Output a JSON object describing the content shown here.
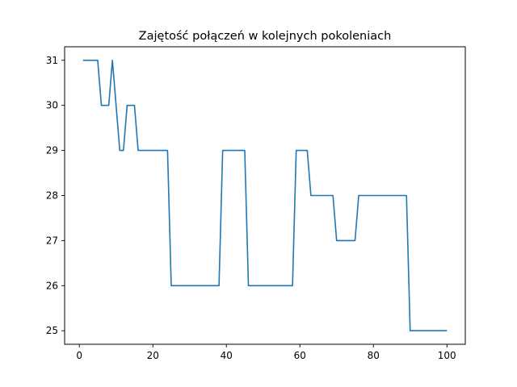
{
  "chart_data": {
    "type": "line",
    "title": "Zajętość połączeń w kolejnych pokoleniach",
    "xlabel": "",
    "ylabel": "",
    "xlim": [
      -4,
      105
    ],
    "ylim": [
      24.7,
      31.3
    ],
    "xticks": [
      0,
      20,
      40,
      60,
      80,
      100
    ],
    "yticks": [
      25,
      26,
      27,
      28,
      29,
      30,
      31
    ],
    "grid": false,
    "color": "#1f77b4",
    "series": [
      {
        "points": [
          [
            1,
            31
          ],
          [
            5,
            31
          ],
          [
            6,
            30
          ],
          [
            8,
            30
          ],
          [
            9,
            31
          ],
          [
            11,
            29
          ],
          [
            12,
            29
          ],
          [
            13,
            30
          ],
          [
            15,
            30
          ],
          [
            16,
            29
          ],
          [
            24,
            29
          ],
          [
            25,
            26
          ],
          [
            38,
            26
          ],
          [
            39,
            29
          ],
          [
            45,
            29
          ],
          [
            46,
            26
          ],
          [
            58,
            26
          ],
          [
            59,
            29
          ],
          [
            62,
            29
          ],
          [
            63,
            28
          ],
          [
            69,
            28
          ],
          [
            70,
            27
          ],
          [
            75,
            27
          ],
          [
            76,
            28
          ],
          [
            89,
            28
          ],
          [
            90,
            25
          ],
          [
            100,
            25
          ]
        ]
      }
    ]
  }
}
